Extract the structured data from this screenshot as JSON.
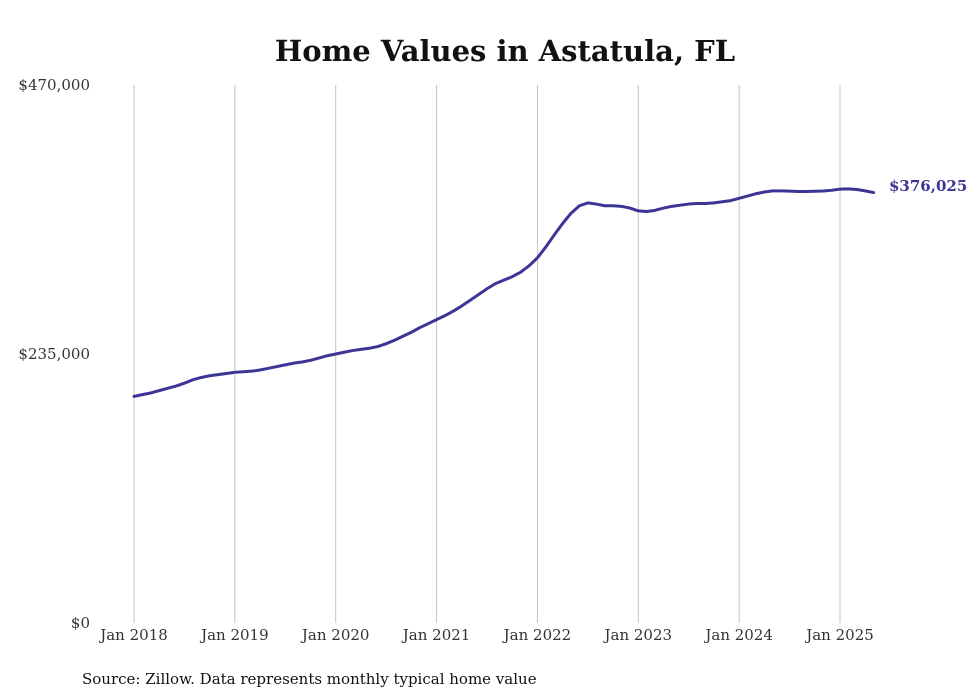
{
  "chart_data": {
    "type": "line",
    "title": "Home Values in Astatula, FL",
    "xlabel": "",
    "ylabel": "",
    "ylim": [
      0,
      470000
    ],
    "y_ticks": [
      {
        "value": 0,
        "label": "$0"
      },
      {
        "value": 235000,
        "label": "$235,000"
      },
      {
        "value": 470000,
        "label": "$470,000"
      }
    ],
    "x_ticks": [
      {
        "value": "2018-01",
        "label": "Jan 2018"
      },
      {
        "value": "2019-01",
        "label": "Jan 2019"
      },
      {
        "value": "2020-01",
        "label": "Jan 2020"
      },
      {
        "value": "2021-01",
        "label": "Jan 2021"
      },
      {
        "value": "2022-01",
        "label": "Jan 2022"
      },
      {
        "value": "2023-01",
        "label": "Jan 2023"
      },
      {
        "value": "2024-01",
        "label": "Jan 2024"
      },
      {
        "value": "2025-01",
        "label": "Jan 2025"
      }
    ],
    "grid": "vertical",
    "series": [
      {
        "color": "#3d3596",
        "points": [
          [
            "2018-01",
            198000
          ],
          [
            "2018-02",
            199500
          ],
          [
            "2018-03",
            201000
          ],
          [
            "2018-04",
            203000
          ],
          [
            "2018-05",
            205000
          ],
          [
            "2018-06",
            207000
          ],
          [
            "2018-07",
            209500
          ],
          [
            "2018-08",
            212500
          ],
          [
            "2018-09",
            214500
          ],
          [
            "2018-10",
            216000
          ],
          [
            "2018-11",
            217000
          ],
          [
            "2018-12",
            218000
          ],
          [
            "2019-01",
            219000
          ],
          [
            "2019-02",
            219500
          ],
          [
            "2019-03",
            220000
          ],
          [
            "2019-04",
            221000
          ],
          [
            "2019-05",
            222500
          ],
          [
            "2019-06",
            224000
          ],
          [
            "2019-07",
            225500
          ],
          [
            "2019-08",
            227000
          ],
          [
            "2019-09",
            228000
          ],
          [
            "2019-10",
            229500
          ],
          [
            "2019-11",
            231500
          ],
          [
            "2019-12",
            233500
          ],
          [
            "2020-01",
            235000
          ],
          [
            "2020-02",
            236500
          ],
          [
            "2020-03",
            238000
          ],
          [
            "2020-04",
            239000
          ],
          [
            "2020-05",
            240000
          ],
          [
            "2020-06",
            241500
          ],
          [
            "2020-07",
            244000
          ],
          [
            "2020-08",
            247000
          ],
          [
            "2020-09",
            250500
          ],
          [
            "2020-10",
            254000
          ],
          [
            "2020-11",
            258000
          ],
          [
            "2020-12",
            261500
          ],
          [
            "2021-01",
            265000
          ],
          [
            "2021-02",
            268500
          ],
          [
            "2021-03",
            272500
          ],
          [
            "2021-04",
            277000
          ],
          [
            "2021-05",
            282000
          ],
          [
            "2021-06",
            287000
          ],
          [
            "2021-07",
            292000
          ],
          [
            "2021-08",
            296500
          ],
          [
            "2021-09",
            299500
          ],
          [
            "2021-10",
            302500
          ],
          [
            "2021-11",
            306500
          ],
          [
            "2021-12",
            312000
          ],
          [
            "2022-01",
            319000
          ],
          [
            "2022-02",
            328500
          ],
          [
            "2022-03",
            339000
          ],
          [
            "2022-04",
            349000
          ],
          [
            "2022-05",
            358000
          ],
          [
            "2022-06",
            364500
          ],
          [
            "2022-07",
            367000
          ],
          [
            "2022-08",
            366000
          ],
          [
            "2022-09",
            364500
          ],
          [
            "2022-10",
            364500
          ],
          [
            "2022-11",
            364000
          ],
          [
            "2022-12",
            362500
          ],
          [
            "2023-01",
            360000
          ],
          [
            "2023-02",
            359500
          ],
          [
            "2023-03",
            360500
          ],
          [
            "2023-04",
            362500
          ],
          [
            "2023-05",
            364000
          ],
          [
            "2023-06",
            365000
          ],
          [
            "2023-07",
            366000
          ],
          [
            "2023-08",
            366500
          ],
          [
            "2023-09",
            366500
          ],
          [
            "2023-10",
            367000
          ],
          [
            "2023-11",
            368000
          ],
          [
            "2023-12",
            369000
          ],
          [
            "2024-01",
            371000
          ],
          [
            "2024-02",
            373000
          ],
          [
            "2024-03",
            375000
          ],
          [
            "2024-04",
            376500
          ],
          [
            "2024-05",
            377500
          ],
          [
            "2024-06",
            377500
          ],
          [
            "2024-07",
            377300
          ],
          [
            "2024-08",
            377000
          ],
          [
            "2024-09",
            377000
          ],
          [
            "2024-10",
            377200
          ],
          [
            "2024-11",
            377400
          ],
          [
            "2024-12",
            378000
          ],
          [
            "2025-01",
            379000
          ],
          [
            "2025-02",
            379300
          ],
          [
            "2025-03",
            378700
          ],
          [
            "2025-04",
            377500
          ],
          [
            "2025-05",
            376025
          ]
        ]
      }
    ],
    "end_label": "$376,025",
    "note": "Source: Zillow. Data represents monthly typical home value"
  }
}
